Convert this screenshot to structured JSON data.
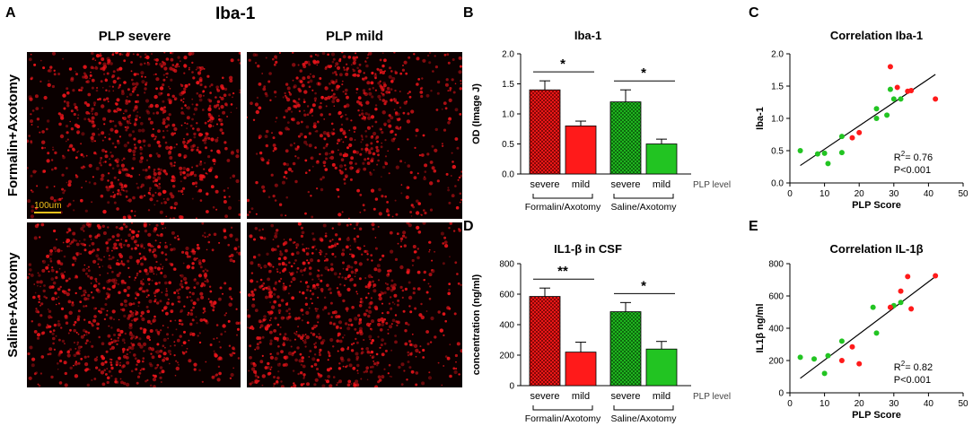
{
  "figure": {
    "panel_labels": [
      "A",
      "B",
      "C",
      "D",
      "E"
    ],
    "panel_a": {
      "title": "Iba-1",
      "columns": [
        "PLP severe",
        "PLP mild"
      ],
      "rows": [
        "Formalin+Axotomy",
        "Saline+Axotomy"
      ],
      "scale_bar": "100um",
      "colors": {
        "stain": "#e8141a",
        "scale_bar": "#f2c21b",
        "background": "#0a0000"
      }
    }
  },
  "chart_data": [
    {
      "id": "B",
      "type": "bar",
      "title": "Iba-1",
      "ylabel": "OD (Image J)",
      "ylim": [
        0,
        2.0
      ],
      "yticks": [
        "0.0",
        "0.5",
        "1.0",
        "1.5",
        "2.0"
      ],
      "categories": [
        "severe",
        "mild",
        "severe",
        "mild"
      ],
      "values": [
        1.4,
        0.8,
        1.2,
        0.5
      ],
      "errors": [
        0.15,
        0.08,
        0.2,
        0.08
      ],
      "bar_styles": [
        "hatched-red",
        "solid-red",
        "hatched-green",
        "solid-green"
      ],
      "groups": [
        "Formalin/Axotomy",
        "Saline/Axotomy"
      ],
      "axis_note": "PLP level",
      "significance": [
        "*",
        "*"
      ],
      "colors": {
        "red": "#ff1a1a",
        "green": "#22c422"
      }
    },
    {
      "id": "D",
      "type": "bar",
      "title": "IL1-β in CSF",
      "ylabel": "concentration (ng/ml)",
      "ylim": [
        0,
        800
      ],
      "yticks": [
        "0",
        "200",
        "400",
        "600",
        "800"
      ],
      "categories": [
        "severe",
        "mild",
        "severe",
        "mild"
      ],
      "values": [
        585,
        220,
        485,
        240
      ],
      "errors": [
        55,
        65,
        60,
        50
      ],
      "bar_styles": [
        "hatched-red",
        "solid-red",
        "hatched-green",
        "solid-green"
      ],
      "groups": [
        "Formalin/Axotomy",
        "Saline/Axotomy"
      ],
      "axis_note": "PLP level",
      "significance": [
        "**",
        "*"
      ],
      "colors": {
        "red": "#ff1a1a",
        "green": "#22c422"
      }
    },
    {
      "id": "C",
      "type": "scatter",
      "title": "Correlation Iba-1",
      "xlabel": "PLP Score",
      "ylabel": "Iba-1",
      "xlim": [
        0,
        50
      ],
      "ylim": [
        0,
        2.0
      ],
      "xticks": [
        "0",
        "10",
        "20",
        "30",
        "40",
        "50"
      ],
      "yticks": [
        "0.0",
        "0.5",
        "1.0",
        "1.5",
        "2.0"
      ],
      "stats": [
        "R",
        "2",
        "= 0.76",
        "P<0.001"
      ],
      "fit": {
        "x": [
          3,
          42
        ],
        "y": [
          0.27,
          1.68
        ]
      },
      "series": [
        {
          "color": "#22c422",
          "x": [
            3,
            8,
            10,
            11,
            15,
            15,
            25,
            25,
            28,
            29,
            30,
            32
          ],
          "y": [
            0.5,
            0.45,
            0.46,
            0.3,
            0.47,
            0.72,
            1.15,
            1.0,
            1.05,
            1.45,
            1.3,
            1.3
          ]
        },
        {
          "color": "#ff1a1a",
          "x": [
            18,
            20,
            29,
            31,
            34,
            35,
            42
          ],
          "y": [
            0.7,
            0.78,
            1.8,
            1.48,
            1.42,
            1.43,
            1.3
          ]
        }
      ]
    },
    {
      "id": "E",
      "type": "scatter",
      "title": "Correlation IL-1β",
      "xlabel": "PLP Score",
      "ylabel": "IL1β ng/ml",
      "xlim": [
        0,
        50
      ],
      "ylim": [
        0,
        800
      ],
      "xticks": [
        "0",
        "10",
        "20",
        "30",
        "40",
        "50"
      ],
      "yticks": [
        "0",
        "200",
        "400",
        "600",
        "800"
      ],
      "stats": [
        "R",
        "2",
        "= 0.82",
        "P<0.001"
      ],
      "fit": {
        "x": [
          3,
          42
        ],
        "y": [
          90,
          720
        ]
      },
      "series": [
        {
          "color": "#22c422",
          "x": [
            3,
            7,
            10,
            11,
            15,
            24,
            25,
            30,
            32
          ],
          "y": [
            220,
            210,
            120,
            230,
            320,
            530,
            370,
            540,
            560
          ]
        },
        {
          "color": "#ff1a1a",
          "x": [
            15,
            18,
            20,
            29,
            32,
            34,
            35,
            42
          ],
          "y": [
            200,
            285,
            180,
            530,
            630,
            720,
            520,
            725
          ]
        }
      ]
    }
  ]
}
